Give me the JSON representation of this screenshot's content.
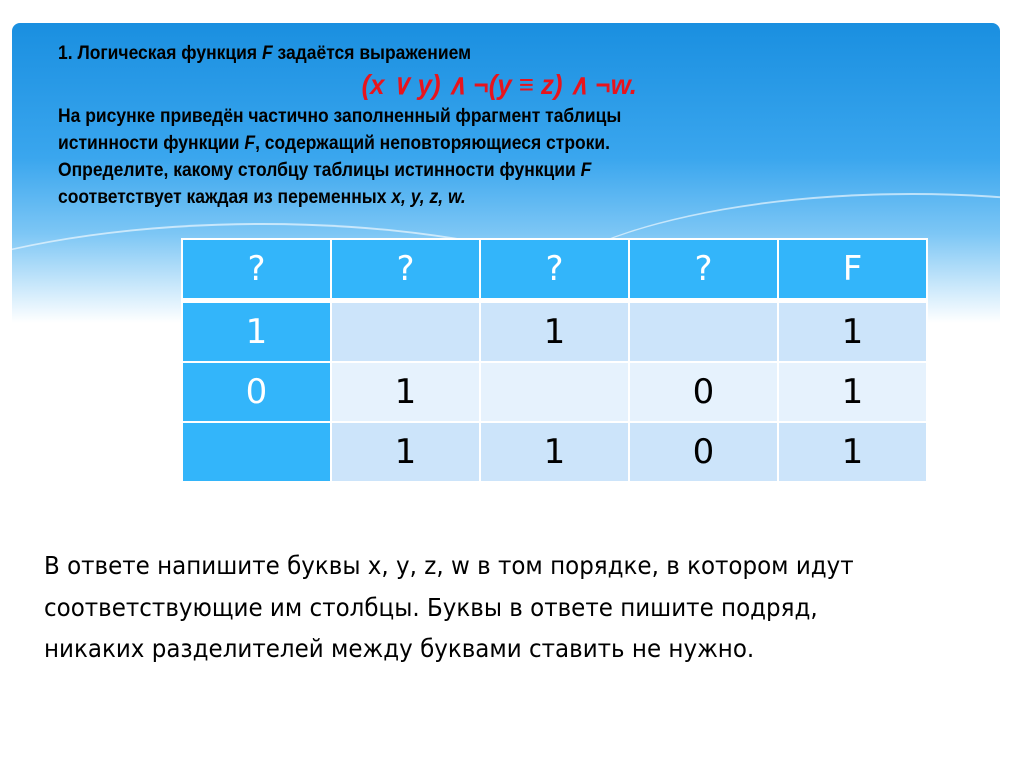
{
  "question": {
    "line1_prefix": "1.",
    "line1": " Логическая функция ",
    "line1_var": "F",
    "line1_end": " задаётся выражением",
    "formula": "(x ∨ y) ∧ ¬(y ≡ z) ∧ ¬w.",
    "line2": "На рисунке приведён частично заполненный фрагмент таблицы",
    "line3_a": "истинности функции ",
    "line3_var": "F",
    "line3_b": ", содержащий неповторяющиеся строки.",
    "line4_a": "Определите, какому столбцу таблицы истинности функции ",
    "line4_var": "F",
    "line5_a": "соответствует каждая из переменных ",
    "line5_vars": "x, y, z, w."
  },
  "table": {
    "headers": [
      "?",
      "?",
      "?",
      "?",
      "F"
    ],
    "rows": [
      [
        "1",
        "",
        "1",
        "",
        "1"
      ],
      [
        "0",
        "1",
        "",
        "0",
        "1"
      ],
      [
        "",
        "1",
        "1",
        "0",
        "1"
      ]
    ]
  },
  "answer_text": "В ответе напишите буквы x, y, z, w в том порядке, в котором идут соответствующие им столбцы. Буквы в ответе пишите подряд, никаких разделителей между буквами ставить не нужно.",
  "colors": {
    "header": "#33b5fa",
    "formula": "#e8141c"
  }
}
